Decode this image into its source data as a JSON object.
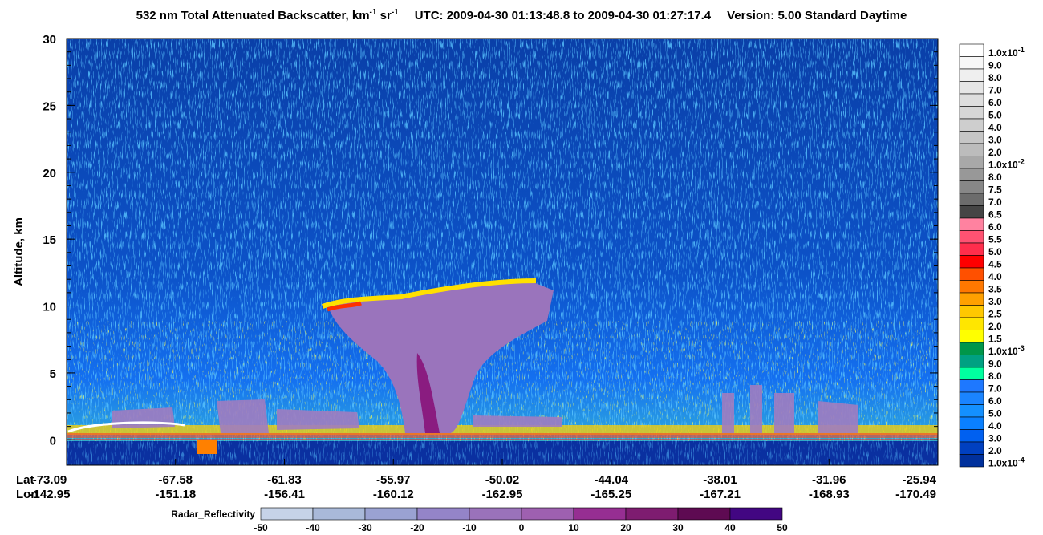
{
  "chart_data": {
    "type": "curtain",
    "title": {
      "main": "532 nm Total Attenuated Backscatter, km",
      "exp1": "-1",
      "unit2": " sr",
      "exp2": "-1",
      "utc": "UTC:  2009-04-30 01:13:48.8  to  2009-04-30 01:27:17.4",
      "version": "Version: 5.00  Standard  Daytime"
    },
    "y_label": "Altitude, km",
    "ylim": [
      -1.9,
      30
    ],
    "yticks": [
      0,
      5,
      10,
      15,
      20,
      25,
      30
    ],
    "x_rows": [
      {
        "name": "Lat",
        "values": [
          -73.09,
          -67.58,
          -61.83,
          -55.97,
          -50.02,
          -44.04,
          -38.01,
          -31.96,
          -25.94
        ]
      },
      {
        "name": "Lon",
        "values": [
          -142.95,
          -151.18,
          -156.41,
          -160.12,
          -162.95,
          -165.25,
          -167.21,
          -168.93,
          -170.49
        ]
      }
    ],
    "colorbar": [
      {
        "label": "1.0x10",
        "exp": "-1",
        "color": "#ffffff"
      },
      {
        "label": "9.0",
        "color": "#f7f7f7"
      },
      {
        "label": "8.0",
        "color": "#efefef"
      },
      {
        "label": "7.0",
        "color": "#e6e6e6"
      },
      {
        "label": "6.0",
        "color": "#dedede"
      },
      {
        "label": "5.0",
        "color": "#d6d6d6"
      },
      {
        "label": "4.0",
        "color": "#cecece"
      },
      {
        "label": "3.0",
        "color": "#c6c6c6"
      },
      {
        "label": "2.0",
        "color": "#bcbcbc"
      },
      {
        "label": "1.0x10",
        "exp": "-2",
        "color": "#a8a8a8"
      },
      {
        "label": "8.0",
        "color": "#989898"
      },
      {
        "label": "7.5",
        "color": "#878787"
      },
      {
        "label": "7.0",
        "color": "#6c6c6c"
      },
      {
        "label": "6.5",
        "color": "#454545"
      },
      {
        "label": "6.0",
        "color": "#ff82a0"
      },
      {
        "label": "5.5",
        "color": "#ff5272"
      },
      {
        "label": "5.0",
        "color": "#ff2e4c"
      },
      {
        "label": "4.5",
        "color": "#ff0000"
      },
      {
        "label": "4.0",
        "color": "#ff5000"
      },
      {
        "label": "3.5",
        "color": "#ff7800"
      },
      {
        "label": "3.0",
        "color": "#ffa000"
      },
      {
        "label": "2.5",
        "color": "#ffc800"
      },
      {
        "label": "2.0",
        "color": "#ffe600"
      },
      {
        "label": "1.5",
        "color": "#ffff00"
      },
      {
        "label": "1.0x10",
        "exp": "-3",
        "color": "#00964a"
      },
      {
        "label": "9.0",
        "color": "#00a082"
      },
      {
        "label": "8.0",
        "color": "#00ffa0"
      },
      {
        "label": "7.0",
        "color": "#1e78ff"
      },
      {
        "label": "6.0",
        "color": "#1a84ff"
      },
      {
        "label": "5.0",
        "color": "#1490ff"
      },
      {
        "label": "4.0",
        "color": "#0a80ff"
      },
      {
        "label": "3.0",
        "color": "#0060f0"
      },
      {
        "label": "2.0",
        "color": "#0040c0"
      },
      {
        "label": "1.0x10",
        "exp": "-4",
        "color": "#00309c"
      }
    ],
    "radar": {
      "title": "Radar_Reflectivity",
      "ticks": [
        -50,
        -40,
        -30,
        -20,
        -10,
        0,
        10,
        20,
        30,
        40,
        50
      ],
      "colors": [
        "#c6d3e8",
        "#a9b9d9",
        "#9aa2d2",
        "#9484c8",
        "#9a72ba",
        "#9e60b0",
        "#962e92",
        "#7e1c70",
        "#5e0a52",
        "#420682"
      ]
    }
  }
}
